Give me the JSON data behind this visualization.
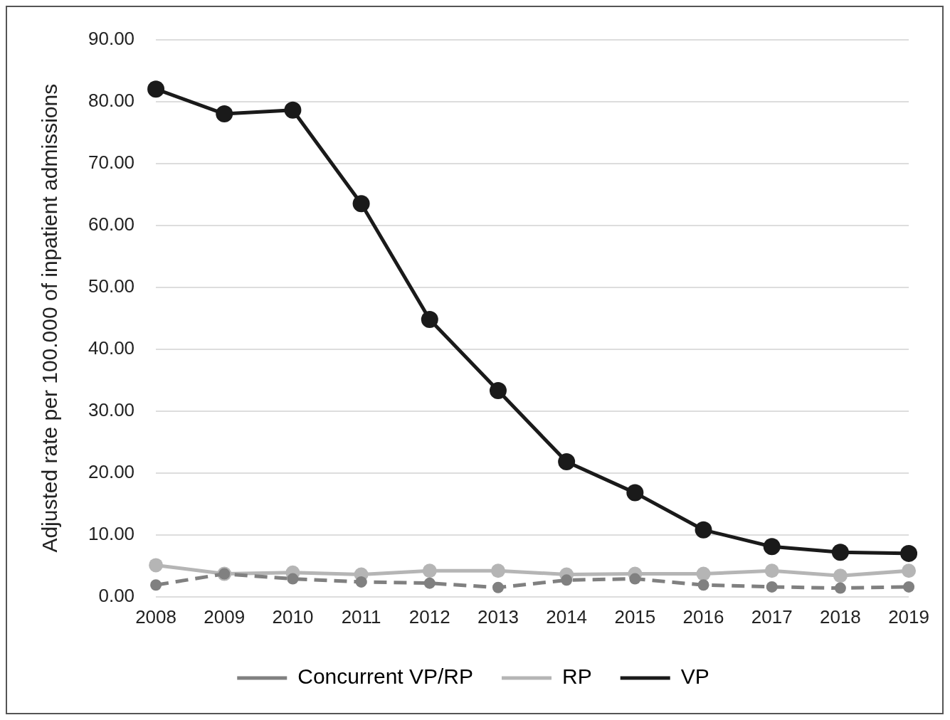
{
  "chart_data": {
    "type": "line",
    "ylabel": "Adjusted rate per 100.000 of inpatient admissions",
    "categories": [
      "2008",
      "2009",
      "2010",
      "2011",
      "2012",
      "2013",
      "2014",
      "2015",
      "2016",
      "2017",
      "2018",
      "2019"
    ],
    "series": [
      {
        "name": "Concurrent VP/RP",
        "color": "#808080",
        "line_style": "dashed",
        "values": [
          1.9,
          3.7,
          2.9,
          2.4,
          2.2,
          1.5,
          2.7,
          2.9,
          1.9,
          1.6,
          1.4,
          1.6
        ]
      },
      {
        "name": "RP",
        "color": "#b5b5b5",
        "line_style": "solid",
        "values": [
          5.1,
          3.7,
          3.9,
          3.6,
          4.2,
          4.2,
          3.6,
          3.7,
          3.7,
          4.2,
          3.4,
          4.2
        ]
      },
      {
        "name": "VP",
        "color": "#1a1a1a",
        "line_style": "solid",
        "values": [
          82.0,
          78.0,
          78.6,
          63.5,
          44.8,
          33.3,
          21.8,
          16.8,
          10.8,
          8.1,
          7.2,
          7.0
        ]
      }
    ],
    "ylim": [
      0,
      90
    ],
    "yticks": [
      {
        "value": 0,
        "label": "0.00"
      },
      {
        "value": 10,
        "label": "10.00"
      },
      {
        "value": 20,
        "label": "20.00"
      },
      {
        "value": 30,
        "label": "30.00"
      },
      {
        "value": 40,
        "label": "40.00"
      },
      {
        "value": 50,
        "label": "50.00"
      },
      {
        "value": 60,
        "label": "60.00"
      },
      {
        "value": 70,
        "label": "70.00"
      },
      {
        "value": 80,
        "label": "80.00"
      },
      {
        "value": 90,
        "label": "90.00"
      }
    ],
    "grid": "y",
    "legend": "bottom",
    "marker": "circle"
  }
}
